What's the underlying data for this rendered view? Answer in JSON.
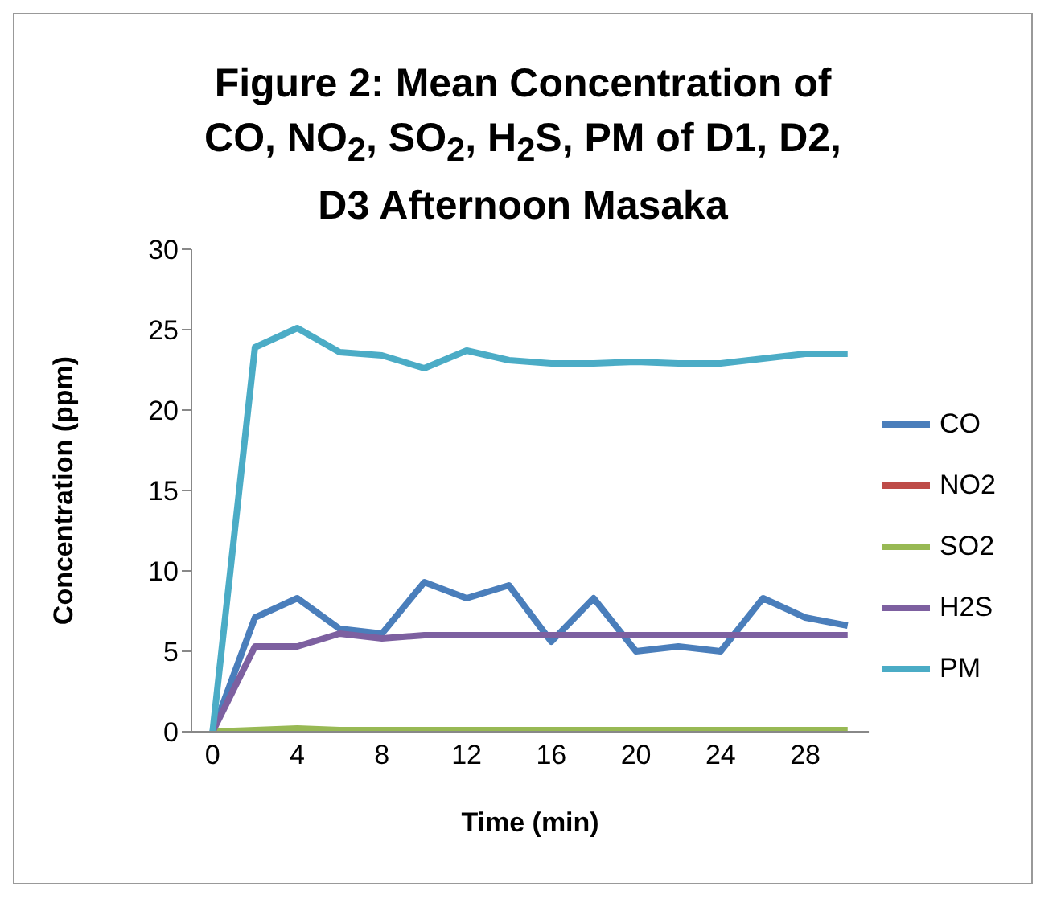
{
  "chart_data": {
    "type": "line",
    "title": "Figure 2: Mean Concentration of CO, NO$_{2}$, SO$_{2}$, H$_{2}$S, PM of D1, D2, D3 Afternoon Masaka",
    "xlabel": "Time (min)",
    "ylabel": "Concentration (ppm)",
    "x": [
      0,
      2,
      4,
      6,
      8,
      10,
      12,
      14,
      16,
      18,
      20,
      22,
      24,
      26,
      28,
      30
    ],
    "xlim": [
      -1,
      31
    ],
    "xticks": [
      0,
      4,
      8,
      12,
      16,
      20,
      24,
      28
    ],
    "ylim": [
      0,
      30
    ],
    "yticks": [
      0,
      5,
      10,
      15,
      20,
      25,
      30
    ],
    "grid": false,
    "legend": "right",
    "marker": "none",
    "line_style": "solid",
    "series": [
      {
        "name": "CO",
        "color": "#4a7ebb",
        "values": [
          0,
          7.1,
          8.3,
          6.4,
          6.1,
          9.3,
          8.3,
          9.1,
          5.6,
          8.3,
          5.0,
          5.3,
          5.0,
          8.3,
          7.1,
          6.6
        ]
      },
      {
        "name": "NO2",
        "color": "#be4b48",
        "values": [
          null,
          null,
          null,
          null,
          null,
          null,
          null,
          null,
          null,
          null,
          null,
          null,
          null,
          null,
          null,
          null
        ]
      },
      {
        "name": "SO2",
        "color": "#98b954",
        "values": [
          0,
          0.1,
          0.2,
          0.1,
          0.1,
          0.1,
          0.1,
          0.1,
          0.1,
          0.1,
          0.1,
          0.1,
          0.1,
          0.1,
          0.1,
          0.1
        ]
      },
      {
        "name": "H2S",
        "color": "#7d60a0",
        "values": [
          0,
          5.3,
          5.3,
          6.1,
          5.8,
          6.0,
          6.0,
          6.0,
          6.0,
          6.0,
          6.0,
          6.0,
          6.0,
          6.0,
          6.0,
          6.0
        ]
      },
      {
        "name": "PM",
        "color": "#4bacc6",
        "values": [
          0,
          23.9,
          25.1,
          23.6,
          23.4,
          22.6,
          23.7,
          23.1,
          22.9,
          22.9,
          23.0,
          22.9,
          22.9,
          23.2,
          23.5,
          23.5
        ]
      }
    ]
  }
}
